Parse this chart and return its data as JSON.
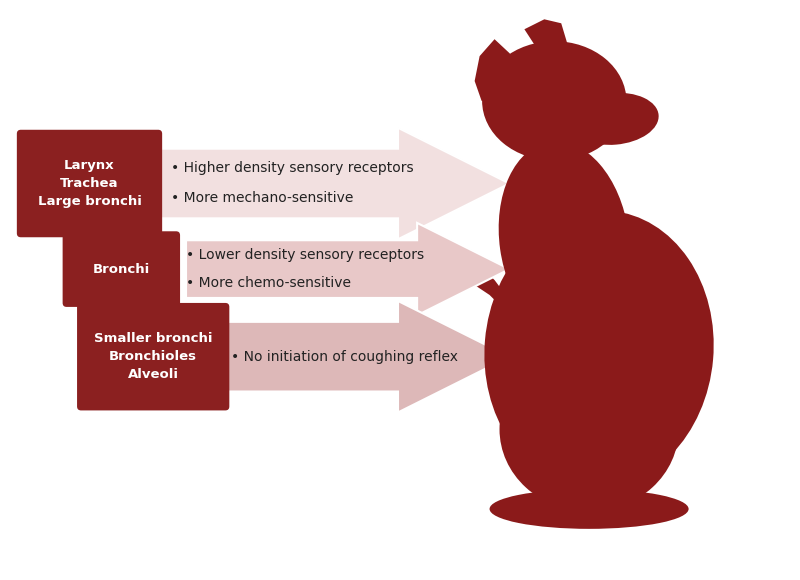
{
  "bg_color": "#ffffff",
  "dog_color": "#8B1A1A",
  "box_color": "#8B2020",
  "box_text_color": "#ffffff",
  "bullet_text_color": "#222222",
  "fig_width": 8.0,
  "fig_height": 5.8,
  "arrow1_color": "#f2e0e0",
  "arrow2_color": "#e8c8c8",
  "arrow3_color": "#ddb8b8",
  "arrow_edge_color": "#ffffff",
  "box1_label": "Larynx\nTrachea\nLarge bronchi",
  "box2_label": "Bronchi",
  "box3_label": "Smaller bronchi\nBronchioles\nAlveoli",
  "bullets1": [
    "Higher density sensory receptors",
    "More mechano-sensitive"
  ],
  "bullets2": [
    "Lower density sensory receptors",
    "More chemo-sensitive"
  ],
  "bullets3": [
    "No initiation of coughing reflex"
  ]
}
